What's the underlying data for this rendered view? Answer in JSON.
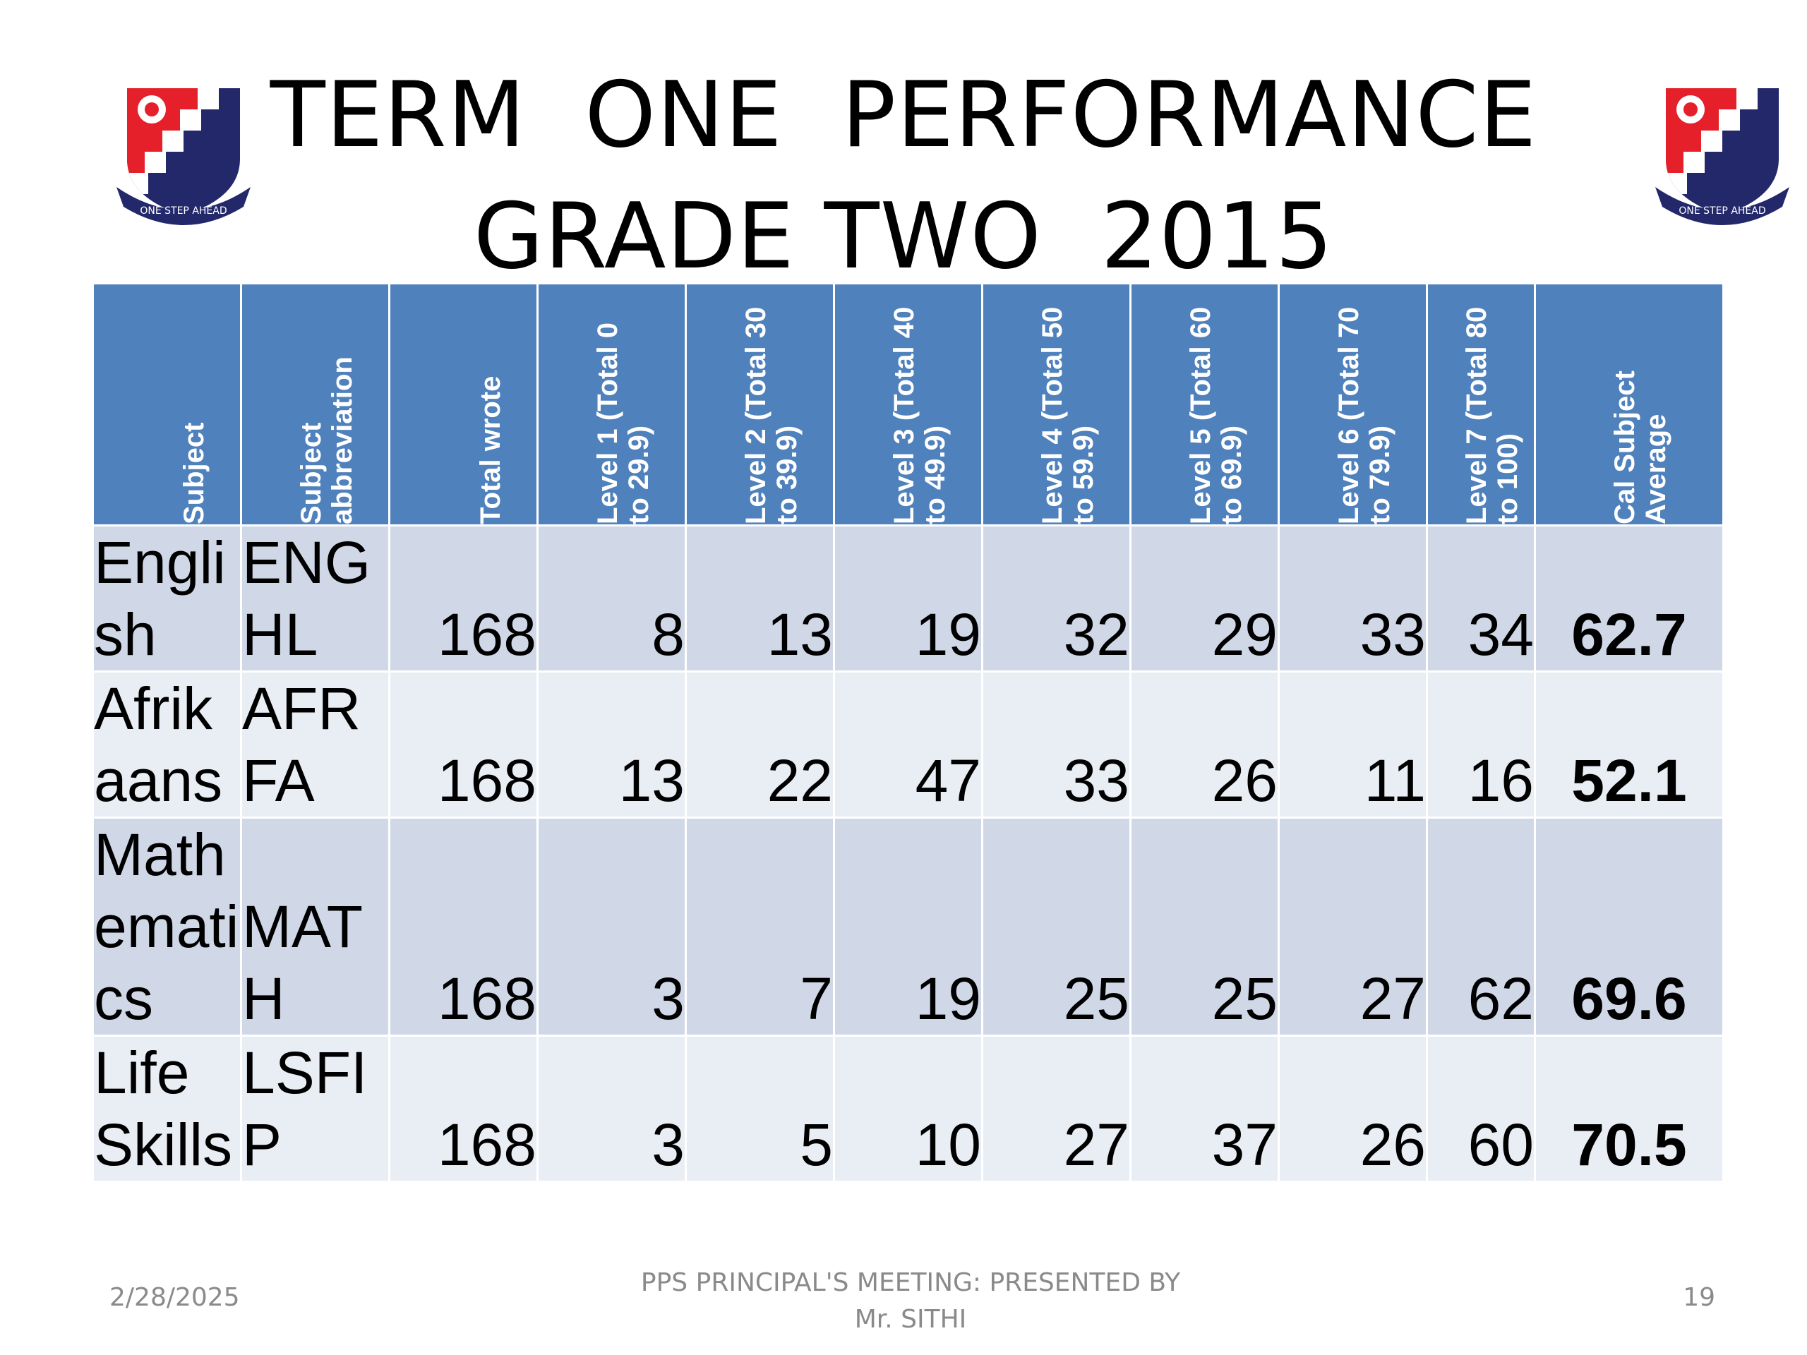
{
  "title_line1": "TERM  ONE  PERFORMANCE",
  "title_line2": "GRADE TWO  2015",
  "logo_motto": "ONE STEP AHEAD",
  "colors": {
    "header_bg": "#4f81bd",
    "row_odd": "#d0d8e8",
    "row_even": "#e9edf4",
    "average_text": "#0000ff",
    "crest_red": "#e5202a",
    "crest_blue": "#23286b"
  },
  "table": {
    "headers": [
      {
        "line1": "Subject",
        "line2": ""
      },
      {
        "line1": "Subject",
        "line2": "abbreviation"
      },
      {
        "line1": "Total wrote",
        "line2": ""
      },
      {
        "line1": "Level 1 (Total  0",
        "line2": "to 29.9)"
      },
      {
        "line1": "Level 2 (Total 30",
        "line2": "to 39.9)"
      },
      {
        "line1": "Level 3 (Total  40",
        "line2": "to 49.9)"
      },
      {
        "line1": "Level 4 (Total 50",
        "line2": "to 59.9)"
      },
      {
        "line1": "Level 5 (Total  60",
        "line2": "to 69.9)"
      },
      {
        "line1": "Level 6 (Total 70",
        "line2": "to 79.9)"
      },
      {
        "line1": "Level 7 (Total  80",
        "line2": "to 100)"
      },
      {
        "line1": "Cal Subject",
        "line2": "Average"
      }
    ],
    "rows": [
      {
        "subject": "English",
        "abbr": "ENG HL",
        "total": "168",
        "l1": "8",
        "l2": "13",
        "l3": "19",
        "l4": "32",
        "l5": "29",
        "l6": "33",
        "l7": "34",
        "avg": "62.7"
      },
      {
        "subject": "Afrikaans",
        "abbr": "AFR FA",
        "total": "168",
        "l1": "13",
        "l2": "22",
        "l3": "47",
        "l4": "33",
        "l5": "26",
        "l6": "11",
        "l7": "16",
        "avg": "52.1"
      },
      {
        "subject": "Mathematics",
        "abbr": "MATH",
        "total": "168",
        "l1": "3",
        "l2": "7",
        "l3": "19",
        "l4": "25",
        "l5": "25",
        "l6": "27",
        "l7": "62",
        "avg": "69.6"
      },
      {
        "subject": "Life Skills",
        "abbr": "LSFIP",
        "total": "168",
        "l1": "3",
        "l2": "5",
        "l3": "10",
        "l4": "27",
        "l5": "37",
        "l6": "26",
        "l7": "60",
        "avg": "70.5"
      }
    ]
  },
  "footer": {
    "date": "2/28/2025",
    "center_line1": "PPS  PRINCIPAL'S MEETING: PRESENTED  BY",
    "center_line2": "Mr. SITHI",
    "page": "19"
  }
}
